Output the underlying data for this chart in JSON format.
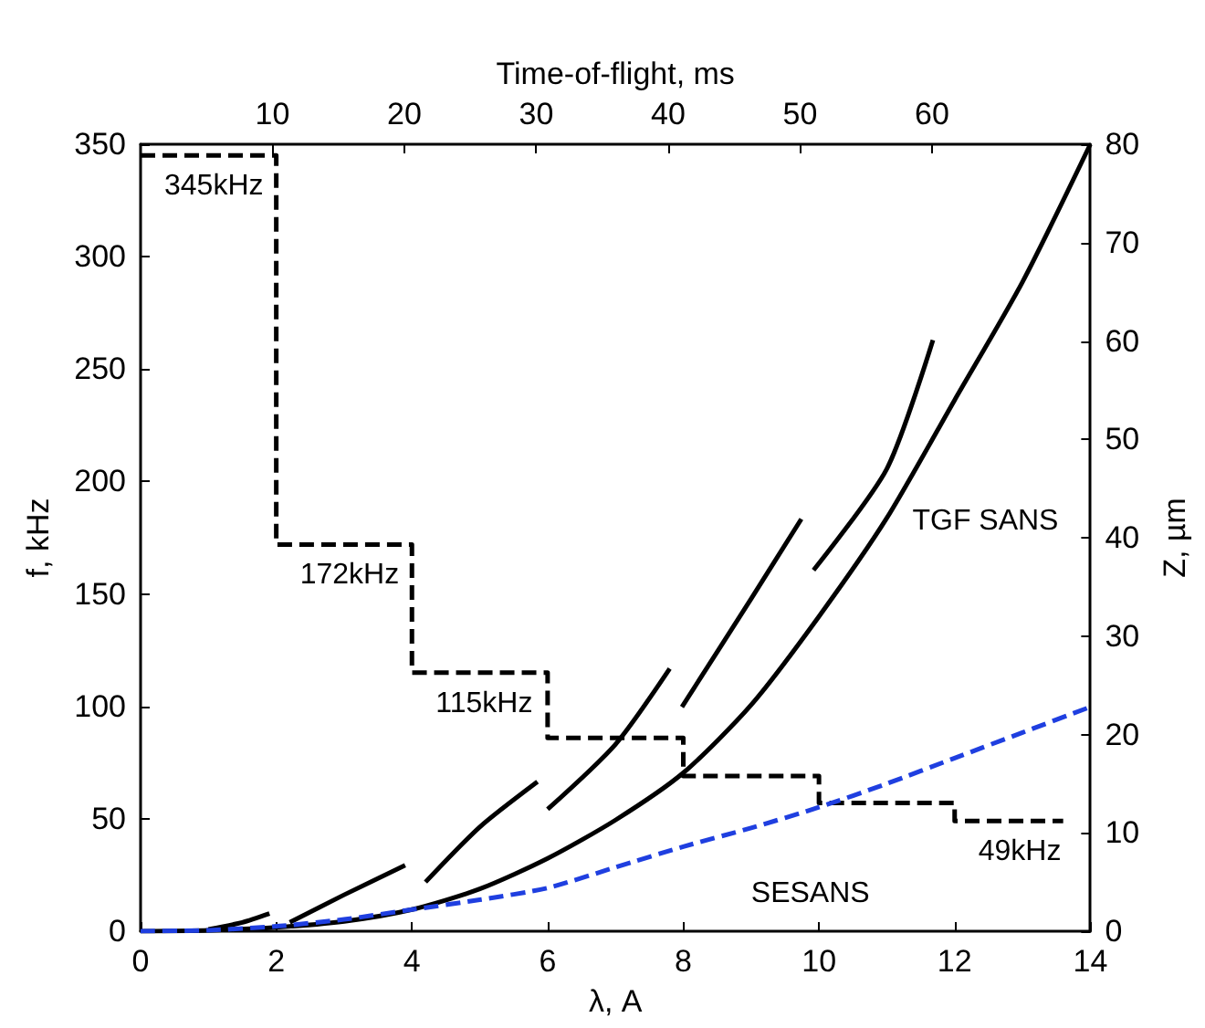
{
  "chart_data": {
    "type": "line",
    "xlabel": "λ, A",
    "ylabel": "f, kHz",
    "y2label": "Z, µm",
    "x2label": "Time-of-flight, ms",
    "xlim": [
      0,
      14
    ],
    "xticks": [
      0,
      2,
      4,
      6,
      8,
      10,
      12,
      14
    ],
    "ylim": [
      0,
      350
    ],
    "yticks": [
      0,
      50,
      100,
      150,
      200,
      250,
      300,
      350
    ],
    "y2lim": [
      0,
      80
    ],
    "y2ticks": [
      0,
      10,
      20,
      30,
      40,
      50,
      60,
      70,
      80
    ],
    "x2lim": [
      0,
      72
    ],
    "x2ticks": [
      10,
      20,
      30,
      40,
      50,
      60
    ],
    "grid": false,
    "legend": false,
    "marker": "none",
    "series": [
      {
        "color": "#000000",
        "line_style": "dashed",
        "x": [
          0,
          2,
          2,
          4,
          4,
          6,
          6,
          8,
          8,
          10,
          10,
          12,
          12,
          13.6
        ],
        "values": [
          345,
          345,
          172,
          172,
          115,
          115,
          86,
          86,
          69,
          69,
          57,
          57,
          49,
          49
        ],
        "value_labels": [
          "345kHz",
          null,
          "172kHz",
          null,
          "115kHz",
          null,
          null,
          null,
          null,
          null,
          null,
          null,
          "49kHz",
          null
        ]
      },
      {
        "color": "#000000",
        "axis": "y2",
        "line_style": "solid",
        "x": [
          1.0,
          1.5,
          1.9,
          2.05,
          2.2,
          3,
          3.9,
          4.05,
          4.2,
          5,
          5.85,
          5.95,
          6.0,
          7,
          7.8,
          7.9,
          7.98,
          9,
          9.74,
          9.83,
          9.92,
          11,
          11.68
        ],
        "values": [
          0.2,
          0.9,
          1.8,
          null,
          0.9,
          3.7,
          6.7,
          null,
          5.0,
          10.6,
          15.2,
          null,
          12.4,
          19,
          26.7,
          null,
          22.8,
          33.8,
          41.9,
          null,
          36.7,
          47,
          60.1
        ]
      },
      {
        "name": "TGF SANS",
        "color": "#000000",
        "axis": "y2",
        "line_style": "solid",
        "x": [
          0,
          1,
          2,
          3,
          4,
          5,
          6,
          7,
          8,
          9,
          10,
          11,
          12,
          13,
          14
        ],
        "values": [
          0,
          0.1,
          0.4,
          1.0,
          2.2,
          4.3,
          7.4,
          11.3,
          16.1,
          23,
          32,
          42,
          54,
          66,
          80
        ]
      },
      {
        "name": "SESANS",
        "color": "#1f3fe0",
        "axis": "y2",
        "line_style": "dashed",
        "x": [
          0,
          1,
          2,
          3,
          4,
          5,
          6,
          7,
          8,
          9,
          10,
          11,
          12,
          13,
          14
        ],
        "values": [
          0,
          0.1,
          0.5,
          1.2,
          2.2,
          3.2,
          4.4,
          6.5,
          8.6,
          10.5,
          12.6,
          15,
          17.6,
          20.2,
          22.8
        ]
      }
    ]
  }
}
